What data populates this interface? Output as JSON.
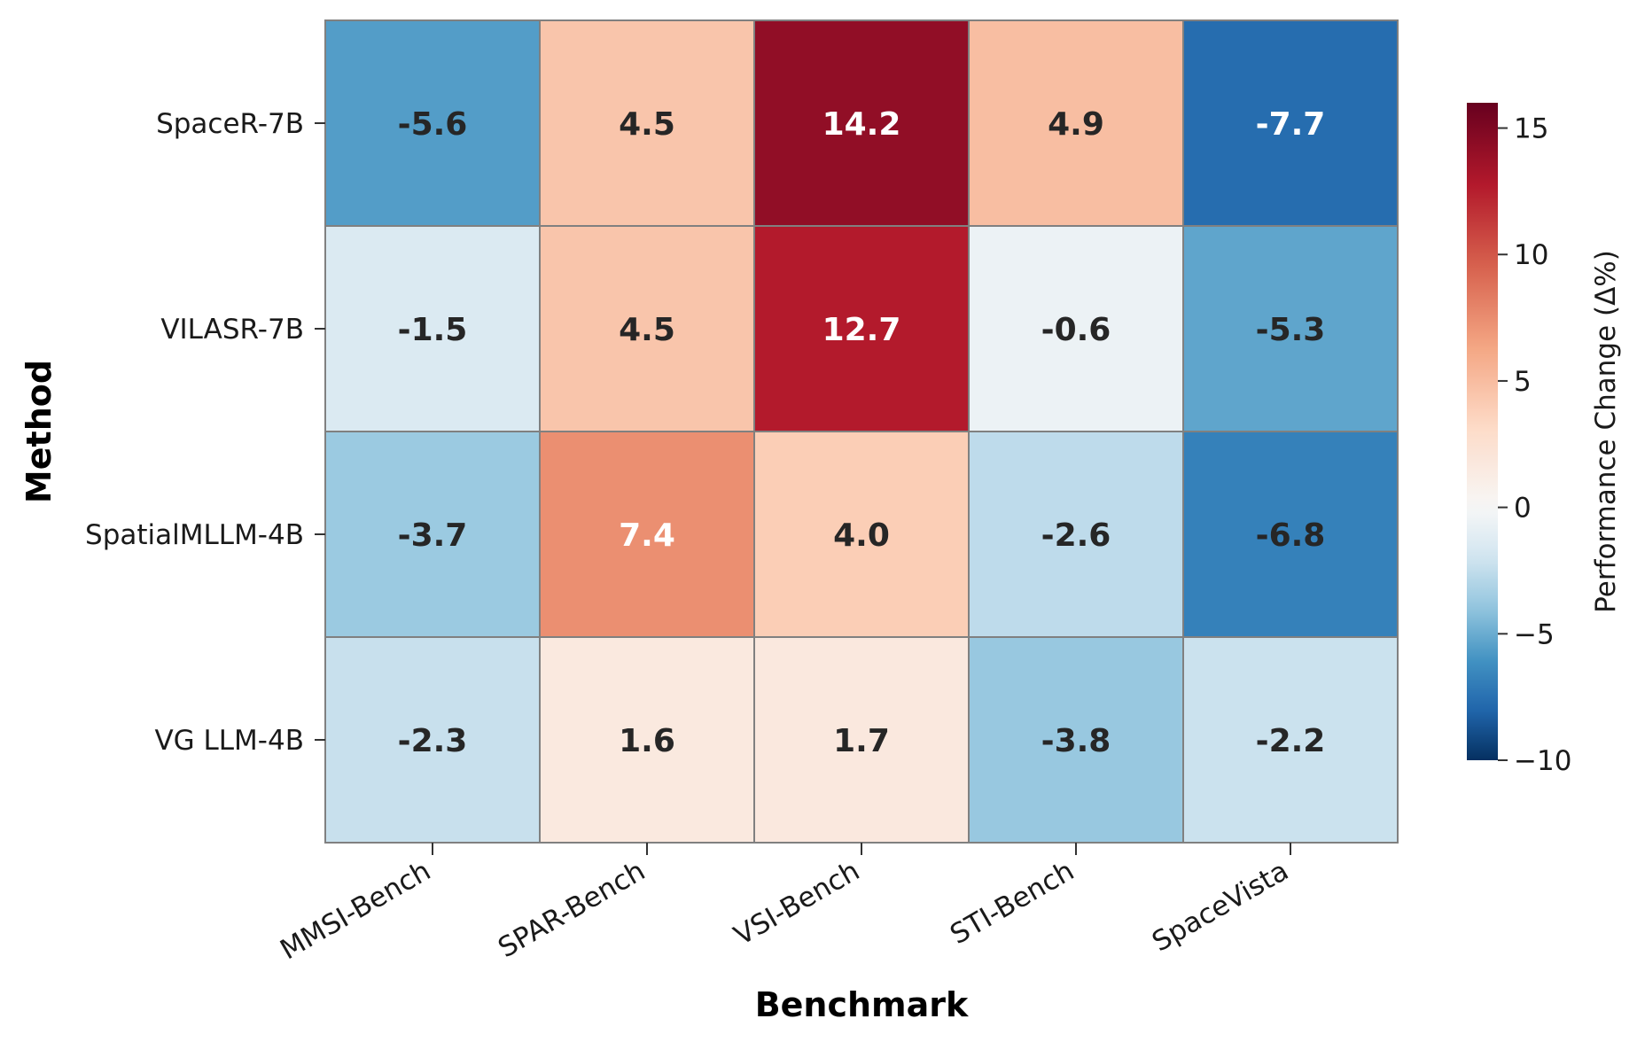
{
  "chart_data": {
    "type": "heatmap",
    "title": "",
    "xlabel": "Benchmark",
    "ylabel": "Method",
    "x_categories": [
      "MMSI-Bench",
      "SPAR-Bench",
      "VSI-Bench",
      "STI-Bench",
      "SpaceVista"
    ],
    "y_categories": [
      "SpaceR-7B",
      "VILASR-7B",
      "SpatialMLLM-4B",
      "VG LLM-4B"
    ],
    "values": [
      [
        -5.6,
        4.5,
        14.2,
        4.9,
        -7.7
      ],
      [
        -1.5,
        4.5,
        12.7,
        -0.6,
        -5.3
      ],
      [
        -3.7,
        7.4,
        4.0,
        -2.6,
        -6.8
      ],
      [
        -2.3,
        1.6,
        1.7,
        -3.8,
        -2.2
      ]
    ],
    "value_labels": [
      [
        "-5.6",
        "4.5",
        "14.2",
        "4.9",
        "-7.7"
      ],
      [
        "-1.5",
        "4.5",
        "12.7",
        "-0.6",
        "-5.3"
      ],
      [
        "-3.7",
        "7.4",
        "4.0",
        "-2.6",
        "-6.8"
      ],
      [
        "-2.3",
        "1.6",
        "1.7",
        "-3.8",
        "-2.2"
      ]
    ],
    "colormap": "RdBu_r",
    "color_range": [
      -10,
      16
    ],
    "colorbar": {
      "label": "Performance Change (Δ%)",
      "ticks": [
        15,
        10,
        5,
        0,
        -5,
        -10
      ],
      "tick_labels": [
        "15",
        "10",
        "5",
        "0",
        "−5",
        "−10"
      ]
    },
    "label_colors": {
      "dark": "#262626",
      "light": "#ffffff"
    },
    "cell_border_color": "#808080"
  }
}
